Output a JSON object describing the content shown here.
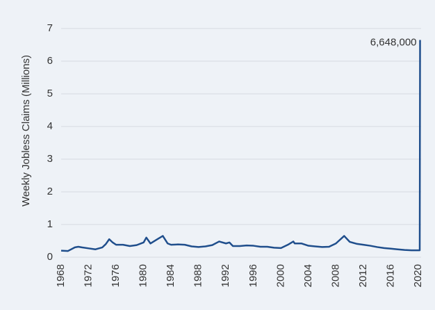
{
  "chart_data": {
    "type": "line",
    "ylabel": "Weekly Jobless Claims (Millions)",
    "x": [
      1968,
      1969,
      1970,
      1970.5,
      1971,
      1972,
      1973,
      1974,
      1974.5,
      1975,
      1975.5,
      1976,
      1977,
      1978,
      1979,
      1980,
      1980.4,
      1981,
      1982,
      1982.8,
      1983.5,
      1984,
      1985,
      1986,
      1987,
      1988,
      1989,
      1990,
      1991,
      1992,
      1992.5,
      1993,
      1994,
      1995,
      1996,
      1997,
      1998,
      1999,
      2000,
      2001,
      2001.8,
      2002,
      2003,
      2004,
      2005,
      2006,
      2007,
      2008,
      2009.2,
      2010,
      2011,
      2012,
      2013,
      2014,
      2015,
      2016,
      2017,
      2018,
      2019,
      2020.2,
      2020.25
    ],
    "series": [
      {
        "name": "Weekly Jobless Claims",
        "color": "#1f4e8c",
        "values": [
          0.2,
          0.19,
          0.3,
          0.32,
          0.3,
          0.27,
          0.24,
          0.3,
          0.4,
          0.55,
          0.45,
          0.38,
          0.38,
          0.34,
          0.37,
          0.45,
          0.6,
          0.42,
          0.55,
          0.65,
          0.42,
          0.38,
          0.39,
          0.38,
          0.33,
          0.31,
          0.33,
          0.37,
          0.48,
          0.42,
          0.45,
          0.34,
          0.34,
          0.36,
          0.35,
          0.32,
          0.32,
          0.29,
          0.28,
          0.38,
          0.48,
          0.42,
          0.42,
          0.35,
          0.33,
          0.31,
          0.32,
          0.42,
          0.65,
          0.47,
          0.41,
          0.38,
          0.35,
          0.31,
          0.28,
          0.26,
          0.24,
          0.22,
          0.21,
          0.21,
          6.648
        ],
        "value_labels": [
          null,
          null,
          null,
          null,
          null,
          null,
          null,
          null,
          null,
          null,
          null,
          null,
          null,
          null,
          null,
          null,
          null,
          null,
          null,
          null,
          null,
          null,
          null,
          null,
          null,
          null,
          null,
          null,
          null,
          null,
          null,
          null,
          null,
          null,
          null,
          null,
          null,
          null,
          null,
          null,
          null,
          null,
          null,
          null,
          null,
          null,
          null,
          null,
          null,
          null,
          null,
          null,
          null,
          null,
          null,
          null,
          null,
          null,
          null,
          null,
          "6,648,000"
        ]
      }
    ],
    "xlim": [
      1968,
      2020.4
    ],
    "xticks": [
      1968,
      1972,
      1976,
      1980,
      1984,
      1988,
      1992,
      1996,
      2000,
      2004,
      2008,
      2012,
      2016,
      2020
    ],
    "ylim": [
      0,
      7
    ],
    "yticks": [
      0,
      1,
      2,
      3,
      4,
      5,
      6,
      7
    ],
    "grid": true
  }
}
